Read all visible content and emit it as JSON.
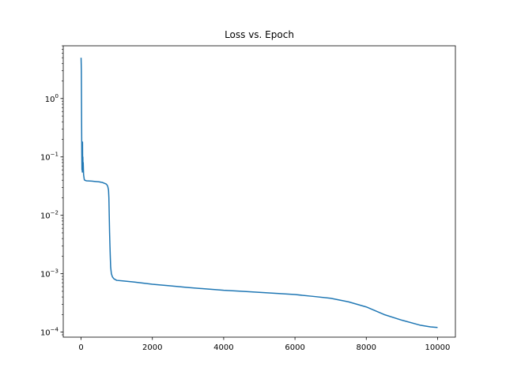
{
  "chart_data": {
    "type": "line",
    "title": "Loss vs. Epoch",
    "xlabel": "",
    "ylabel": "",
    "xscale": "linear",
    "yscale": "log",
    "xlim": [
      -500,
      10500
    ],
    "ylim": [
      8.2e-05,
      8.0
    ],
    "grid": false,
    "legend": "none",
    "x_ticks": [
      0,
      2000,
      4000,
      6000,
      8000,
      10000
    ],
    "x_tick_labels": [
      "0",
      "2000",
      "4000",
      "6000",
      "8000",
      "10000"
    ],
    "y_ticks": [
      0.0001,
      0.001,
      0.01,
      0.1,
      1
    ],
    "y_tick_labels": [
      {
        "base": "10",
        "exp": "−4"
      },
      {
        "base": "10",
        "exp": "−3"
      },
      {
        "base": "10",
        "exp": "−2"
      },
      {
        "base": "10",
        "exp": "−1"
      },
      {
        "base": "10",
        "exp": "0"
      }
    ],
    "series": [
      {
        "color": "#1f77b4",
        "points": [
          [
            0,
            5.0
          ],
          [
            8,
            3.0
          ],
          [
            15,
            0.4
          ],
          [
            20,
            0.12
          ],
          [
            25,
            0.06
          ],
          [
            30,
            0.15
          ],
          [
            35,
            0.055
          ],
          [
            40,
            0.18
          ],
          [
            45,
            0.07
          ],
          [
            50,
            0.1
          ],
          [
            55,
            0.06
          ],
          [
            60,
            0.08
          ],
          [
            70,
            0.05
          ],
          [
            80,
            0.045
          ],
          [
            90,
            0.041
          ],
          [
            100,
            0.04
          ],
          [
            150,
            0.039
          ],
          [
            200,
            0.0389
          ],
          [
            300,
            0.0385
          ],
          [
            400,
            0.038
          ],
          [
            500,
            0.0375
          ],
          [
            600,
            0.0365
          ],
          [
            650,
            0.0355
          ],
          [
            700,
            0.0345
          ],
          [
            730,
            0.033
          ],
          [
            750,
            0.031
          ],
          [
            770,
            0.027
          ],
          [
            780,
            0.02
          ],
          [
            790,
            0.01
          ],
          [
            800,
            0.005
          ],
          [
            810,
            0.003
          ],
          [
            820,
            0.0019
          ],
          [
            830,
            0.0013
          ],
          [
            850,
            0.001
          ],
          [
            880,
            0.00088
          ],
          [
            920,
            0.00082
          ],
          [
            1000,
            0.00077
          ],
          [
            1200,
            0.00075
          ],
          [
            1500,
            0.00072
          ],
          [
            2000,
            0.00066
          ],
          [
            2500,
            0.00062
          ],
          [
            3000,
            0.00058
          ],
          [
            3500,
            0.00055
          ],
          [
            4000,
            0.00052
          ],
          [
            4500,
            0.0005
          ],
          [
            5000,
            0.00048
          ],
          [
            5500,
            0.00046
          ],
          [
            6000,
            0.00044
          ],
          [
            6500,
            0.00041
          ],
          [
            7000,
            0.00038
          ],
          [
            7500,
            0.00033
          ],
          [
            8000,
            0.00027
          ],
          [
            8500,
            0.0002
          ],
          [
            9000,
            0.00016
          ],
          [
            9500,
            0.000132
          ],
          [
            9800,
            0.000123
          ],
          [
            10000,
            0.00012
          ]
        ]
      }
    ]
  }
}
